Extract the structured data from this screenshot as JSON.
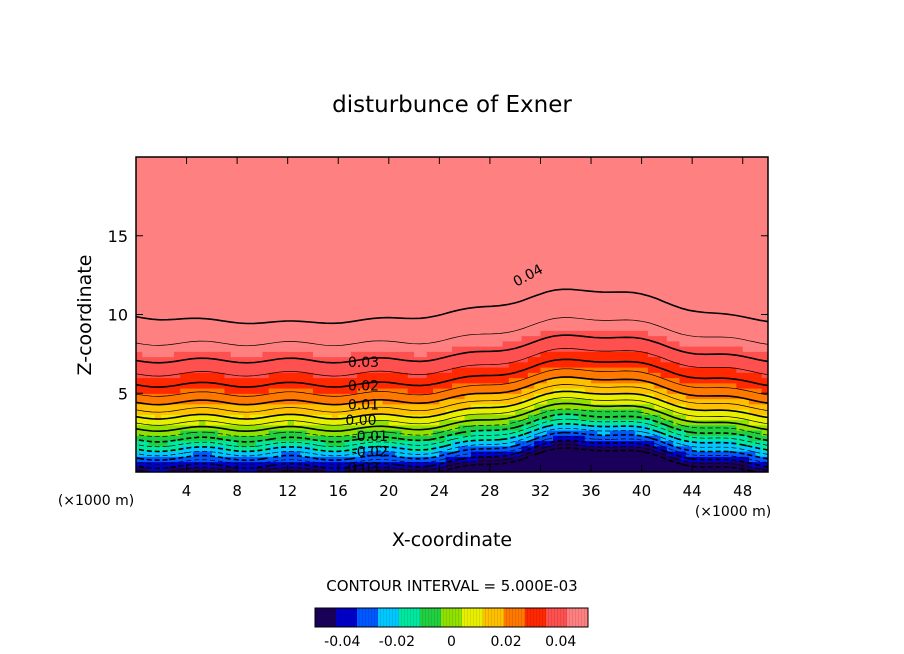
{
  "chart_data": {
    "type": "heatmap",
    "subtype": "filled-contour",
    "title": "disturbunce of Exner",
    "xlabel": "X-coordinate",
    "ylabel": "Z-coordinate",
    "x_unit": "(×1000 m)",
    "xlim": [
      0,
      50
    ],
    "ylim": [
      0,
      20
    ],
    "x_ticks": [
      4,
      8,
      12,
      16,
      20,
      24,
      28,
      32,
      36,
      40,
      44,
      48
    ],
    "y_ticks": [
      5,
      10,
      15
    ],
    "contour_interval_text": "CONTOUR INTERVAL = 5.000E-03",
    "contour_labels": [
      {
        "text": "0.04",
        "x": 31,
        "z": 12.5,
        "rotate": -28
      },
      {
        "text": "0.03",
        "x": 18,
        "z": 7.0,
        "rotate": 0
      },
      {
        "text": "0.02",
        "x": 18,
        "z": 5.5,
        "rotate": 0
      },
      {
        "text": "0.01",
        "x": 18,
        "z": 4.3,
        "rotate": 0
      },
      {
        "text": "0.00",
        "x": 17.8,
        "z": 3.3,
        "rotate": 0
      },
      {
        "text": "-0.01",
        "x": 18.5,
        "z": 2.3,
        "rotate": 0
      },
      {
        "text": "-0.02",
        "x": 18.5,
        "z": 1.3,
        "rotate": 0
      },
      {
        "text": "-0.03",
        "x": 17.8,
        "z": 0.3,
        "rotate": 0
      }
    ],
    "field_range": [
      -0.05,
      0.05
    ],
    "grid": false,
    "colorbar": {
      "range": [
        -0.05,
        0.05
      ],
      "ticks": [
        -0.04,
        -0.02,
        0,
        0.02,
        0.04
      ],
      "tick_labels": [
        "-0.04",
        "-0.02",
        "0",
        "0.02",
        "0.04"
      ],
      "placement": "bottom"
    },
    "colormap": [
      "#1a005a",
      "#0000c8",
      "#0058ff",
      "#00c8ff",
      "#00e8a0",
      "#20d040",
      "#90e000",
      "#e8f000",
      "#ffc000",
      "#ff7800",
      "#ff2800",
      "#ff5050",
      "#ff8080"
    ]
  }
}
